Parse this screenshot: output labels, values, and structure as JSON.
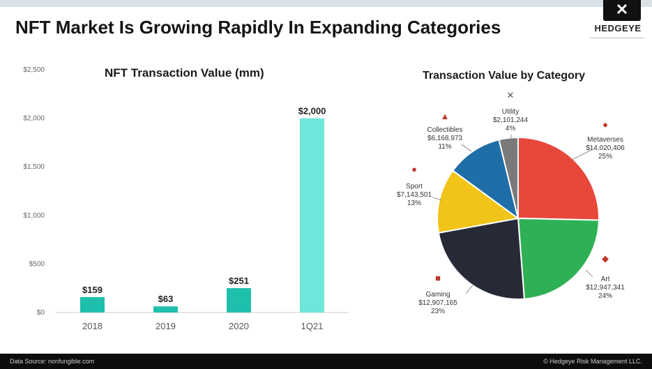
{
  "header": {
    "title": "NFT Market Is Growing Rapidly In Expanding Categories",
    "logo_text": "HEDGEYE",
    "logo_mark": "✕"
  },
  "footer": {
    "source": "Data Source: nonfungible.com",
    "copyright": "© Hedgeye Risk Management LLC."
  },
  "chart_data": [
    {
      "type": "bar",
      "title": "NFT Transaction Value (mm)",
      "categories": [
        "2018",
        "2019",
        "2020",
        "1Q21"
      ],
      "values": [
        159,
        63,
        251,
        2000
      ],
      "data_labels": [
        "$159",
        "$63",
        "$251",
        "$2,000"
      ],
      "ylim": [
        0,
        2500
      ],
      "yticks": [
        0,
        500,
        1000,
        1500,
        2000,
        2500
      ],
      "ytick_labels": [
        "$0",
        "$500",
        "$1,000",
        "$1,500",
        "$2,000",
        "$2,500"
      ],
      "xlabel": "",
      "ylabel": "",
      "colors": {
        "historic": "#1fbfae",
        "latest": "#6ee6d9"
      }
    },
    {
      "type": "pie",
      "title": "Transaction Value by Category",
      "slices": [
        {
          "label": "Metaverses",
          "value": 14020406,
          "value_label": "$14,020,406",
          "pct": "25%",
          "color": "#e8473c"
        },
        {
          "label": "Art",
          "value": 12947341,
          "value_label": "$12,947,341",
          "pct": "24%",
          "color": "#2eb155"
        },
        {
          "label": "Gaming",
          "value": 12907165,
          "value_label": "$12,907,165",
          "pct": "23%",
          "color": "#262a36"
        },
        {
          "label": "Sport",
          "value": 7143501,
          "value_label": "$7,143,501",
          "pct": "13%",
          "color": "#f0c419"
        },
        {
          "label": "Collectibles",
          "value": 6168973,
          "value_label": "$6,168,973",
          "pct": "11%",
          "color": "#1f6ea8"
        },
        {
          "label": "Utility",
          "value": 2101244,
          "value_label": "$2,101,244",
          "pct": "4%",
          "color": "#7a7a7a"
        }
      ]
    }
  ]
}
